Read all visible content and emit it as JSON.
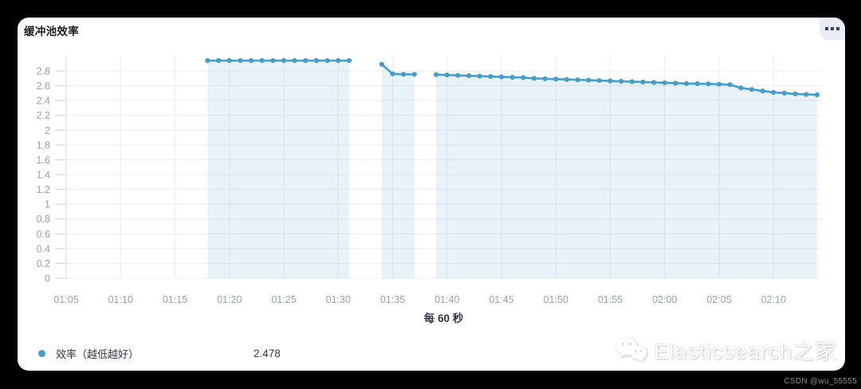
{
  "panel": {
    "title": "缓冲池效率",
    "menu_icon": "panel-options-squares-icon",
    "legend": {
      "series_label": "效率（越低越好）",
      "series_value": "2.478",
      "dot_color": "#469fca"
    }
  },
  "watermark": {
    "brand": "Elasticsearch之家",
    "icon": "wechat-icon",
    "credit": "CSDN @wu_55555"
  },
  "chart_data": {
    "type": "line",
    "title": "缓冲池效率",
    "xlabel": "每 60 秒",
    "ylabel": "",
    "ylim": [
      0,
      2.94
    ],
    "grid": true,
    "legend_position": "bottom-left",
    "line_color": "#459dc9",
    "fill_opacity": 0.12,
    "grid_color": "#eef1f5",
    "tick_color": "#d3dae6",
    "label_color": "#98a2b3",
    "xlabel_color": "#343741",
    "yticks": [
      0,
      0.2,
      0.4,
      0.6,
      0.8,
      1,
      1.2,
      1.4,
      1.6,
      1.8,
      2,
      2.2,
      2.4,
      2.6,
      2.8
    ],
    "xticks": [
      "01:05",
      "01:10",
      "01:15",
      "01:20",
      "01:25",
      "01:30",
      "01:35",
      "01:40",
      "01:45",
      "01:50",
      "01:55",
      "02:00",
      "02:05",
      "02:10"
    ],
    "series": [
      {
        "name": "效率（越低越好）",
        "current_value": 2.478,
        "segments": [
          [
            [
              "01:18",
              2.94
            ],
            [
              "01:19",
              2.94
            ],
            [
              "01:20",
              2.94
            ],
            [
              "01:21",
              2.94
            ],
            [
              "01:22",
              2.94
            ],
            [
              "01:23",
              2.94
            ],
            [
              "01:24",
              2.94
            ],
            [
              "01:25",
              2.94
            ],
            [
              "01:26",
              2.94
            ],
            [
              "01:27",
              2.94
            ],
            [
              "01:28",
              2.94
            ],
            [
              "01:29",
              2.94
            ],
            [
              "01:30",
              2.94
            ],
            [
              "01:31",
              2.94
            ]
          ],
          [
            [
              "01:34",
              2.89
            ],
            [
              "01:35",
              2.76
            ],
            [
              "01:36",
              2.755
            ],
            [
              "01:37",
              2.755
            ]
          ],
          [
            [
              "01:39",
              2.75
            ],
            [
              "01:40",
              2.745
            ],
            [
              "01:41",
              2.74
            ],
            [
              "01:42",
              2.735
            ],
            [
              "01:43",
              2.73
            ],
            [
              "01:44",
              2.725
            ],
            [
              "01:45",
              2.72
            ],
            [
              "01:46",
              2.715
            ],
            [
              "01:47",
              2.71
            ],
            [
              "01:48",
              2.7
            ],
            [
              "01:49",
              2.695
            ],
            [
              "01:50",
              2.69
            ],
            [
              "01:51",
              2.685
            ],
            [
              "01:52",
              2.68
            ],
            [
              "01:53",
              2.675
            ],
            [
              "01:54",
              2.67
            ],
            [
              "01:55",
              2.665
            ],
            [
              "01:56",
              2.66
            ],
            [
              "01:57",
              2.655
            ],
            [
              "01:58",
              2.65
            ],
            [
              "01:59",
              2.645
            ],
            [
              "02:00",
              2.64
            ],
            [
              "02:01",
              2.635
            ],
            [
              "02:02",
              2.63
            ],
            [
              "02:03",
              2.628
            ],
            [
              "02:04",
              2.625
            ],
            [
              "02:05",
              2.62
            ],
            [
              "02:06",
              2.615
            ],
            [
              "02:07",
              2.57
            ],
            [
              "02:08",
              2.55
            ],
            [
              "02:09",
              2.53
            ],
            [
              "02:10",
              2.51
            ],
            [
              "02:11",
              2.5
            ],
            [
              "02:12",
              2.49
            ],
            [
              "02:13",
              2.483
            ],
            [
              "02:14",
              2.478
            ]
          ]
        ]
      }
    ]
  }
}
